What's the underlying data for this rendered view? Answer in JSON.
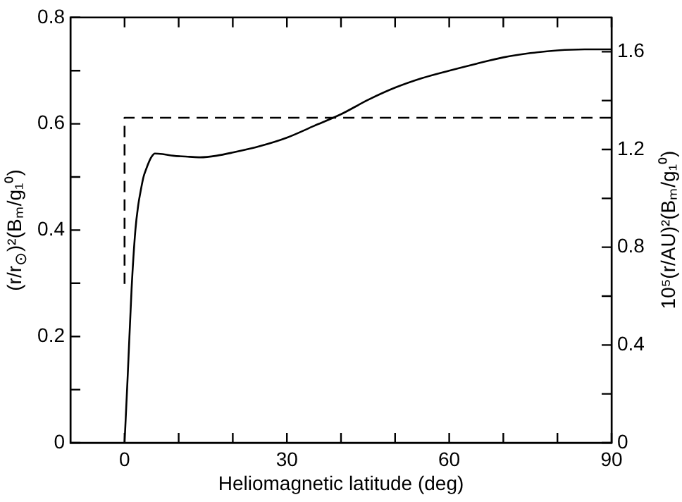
{
  "chart_data": {
    "type": "line",
    "xlabel": "Heliomagnetic latitude (deg)",
    "ylabel": "(r/r$_{⊙}$)²(Bₘ/g₁⁰)",
    "y2label": "10⁵(r/AU)²(Bₘ/g₁⁰)",
    "xlim": [
      -10,
      90
    ],
    "xticks": [
      0,
      {
        "value": 10,
        "label": null
      },
      {
        "value": 20,
        "label": null
      },
      30,
      {
        "value": 40,
        "label": null
      },
      {
        "value": 50,
        "label": null
      },
      60,
      {
        "value": 70,
        "label": null
      },
      {
        "value": 80,
        "label": null
      },
      90
    ],
    "ylim": [
      0,
      0.8
    ],
    "yticks": [
      0,
      {
        "value": 0.1,
        "label": null
      },
      0.2,
      {
        "value": 0.3,
        "label": null
      },
      0.4,
      {
        "value": 0.5,
        "label": null
      },
      0.6,
      {
        "value": 0.7,
        "label": null
      },
      0.8
    ],
    "y2lim": [
      0,
      1.74
    ],
    "y2ticks": [
      0,
      {
        "value": 0.2,
        "label": null
      },
      0.4,
      {
        "value": 0.6,
        "label": null
      },
      0.8,
      {
        "value": 1.0,
        "label": null
      },
      1.2,
      {
        "value": 1.4,
        "label": null
      },
      1.6
    ],
    "marker": "none",
    "series": [
      {
        "color": "#000000",
        "line_style": "solid",
        "x": [
          0,
          0.6,
          1.3,
          2,
          2.5,
          3,
          3.5,
          4,
          4.5,
          5,
          5.6,
          7,
          9,
          12,
          14,
          17,
          20,
          25,
          30,
          35,
          40,
          45,
          50,
          55,
          60,
          65,
          70,
          75,
          80,
          85,
          90
        ],
        "values": [
          0,
          0.13,
          0.29,
          0.4,
          0.445,
          0.475,
          0.5,
          0.515,
          0.528,
          0.538,
          0.544,
          0.543,
          0.54,
          0.538,
          0.537,
          0.54,
          0.546,
          0.558,
          0.574,
          0.596,
          0.618,
          0.645,
          0.668,
          0.686,
          0.7,
          0.713,
          0.725,
          0.733,
          0.738,
          0.74,
          0.74
        ]
      },
      {
        "color": "#000000",
        "line_style": "dashed",
        "axis": "y2",
        "x": [
          0,
          0,
          90
        ],
        "values": [
          0.65,
          1.33,
          1.33
        ]
      }
    ]
  }
}
